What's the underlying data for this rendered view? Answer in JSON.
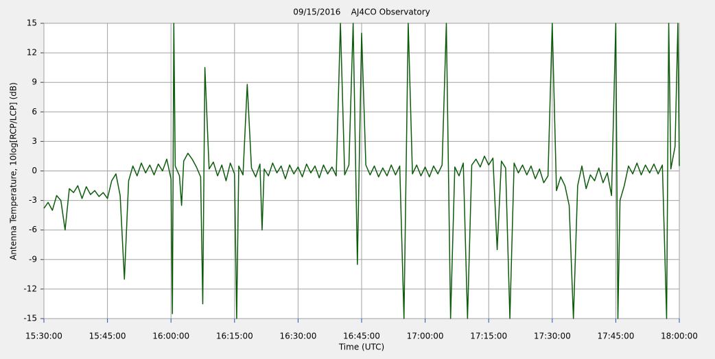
{
  "chart_data": {
    "type": "line",
    "title": "09/15/2016    AJ4CO Observatory",
    "x_label": "Time (UTC)",
    "y_label": "Antenna Temperature, 10log[RCP/LCP] (dB)",
    "color": "#0b5b0b",
    "grid": true,
    "xlim": [
      "15:30:00",
      "18:00:00"
    ],
    "xticks": [
      "15:30:00",
      "15:45:00",
      "16:00:00",
      "16:15:00",
      "16:30:00",
      "16:45:00",
      "17:00:00",
      "17:15:00",
      "17:30:00",
      "17:45:00",
      "18:00:00"
    ],
    "ylim": [
      -15,
      15
    ],
    "yticks": [
      15,
      12,
      9,
      6,
      3,
      0,
      -3,
      -6,
      -9,
      -12,
      -15
    ],
    "x": [
      "15:30:00",
      "15:31:00",
      "15:32:00",
      "15:33:00",
      "15:34:00",
      "15:35:00",
      "15:36:00",
      "15:37:00",
      "15:38:00",
      "15:39:00",
      "15:40:00",
      "15:41:00",
      "15:42:00",
      "15:43:00",
      "15:44:00",
      "15:45:00",
      "15:46:00",
      "15:47:00",
      "15:48:00",
      "15:49:00",
      "15:50:00",
      "15:51:00",
      "15:52:00",
      "15:53:00",
      "15:54:00",
      "15:55:00",
      "15:56:00",
      "15:57:00",
      "15:58:00",
      "15:59:00",
      "16:00:00",
      "16:00:20",
      "16:00:40",
      "16:01:00",
      "16:02:00",
      "16:02:30",
      "16:03:00",
      "16:04:00",
      "16:05:00",
      "16:06:00",
      "16:07:00",
      "16:07:30",
      "16:08:00",
      "16:09:00",
      "16:10:00",
      "16:11:00",
      "16:12:00",
      "16:13:00",
      "16:14:00",
      "16:15:00",
      "16:15:30",
      "16:16:00",
      "16:17:00",
      "16:18:00",
      "16:19:00",
      "16:20:00",
      "16:21:00",
      "16:21:30",
      "16:22:00",
      "16:23:00",
      "16:24:00",
      "16:25:00",
      "16:26:00",
      "16:27:00",
      "16:28:00",
      "16:29:00",
      "16:30:00",
      "16:31:00",
      "16:32:00",
      "16:33:00",
      "16:34:00",
      "16:35:00",
      "16:36:00",
      "16:37:00",
      "16:38:00",
      "16:39:00",
      "16:40:00",
      "16:41:00",
      "16:42:00",
      "16:43:00",
      "16:44:00",
      "16:45:00",
      "16:46:00",
      "16:47:00",
      "16:48:00",
      "16:49:00",
      "16:50:00",
      "16:51:00",
      "16:52:00",
      "16:53:00",
      "16:54:00",
      "16:55:00",
      "16:56:00",
      "16:57:00",
      "16:58:00",
      "16:59:00",
      "17:00:00",
      "17:01:00",
      "17:02:00",
      "17:03:00",
      "17:04:00",
      "17:05:00",
      "17:06:00",
      "17:07:00",
      "17:08:00",
      "17:09:00",
      "17:10:00",
      "17:11:00",
      "17:12:00",
      "17:13:00",
      "17:14:00",
      "17:15:00",
      "17:16:00",
      "17:17:00",
      "17:18:00",
      "17:19:00",
      "17:20:00",
      "17:21:00",
      "17:22:00",
      "17:23:00",
      "17:24:00",
      "17:25:00",
      "17:26:00",
      "17:27:00",
      "17:28:00",
      "17:29:00",
      "17:30:00",
      "17:31:00",
      "17:32:00",
      "17:33:00",
      "17:34:00",
      "17:35:00",
      "17:36:00",
      "17:37:00",
      "17:38:00",
      "17:39:00",
      "17:40:00",
      "17:41:00",
      "17:42:00",
      "17:43:00",
      "17:44:00",
      "17:45:00",
      "17:45:30",
      "17:46:00",
      "17:47:00",
      "17:48:00",
      "17:49:00",
      "17:50:00",
      "17:51:00",
      "17:52:00",
      "17:53:00",
      "17:54:00",
      "17:55:00",
      "17:56:00",
      "17:57:00",
      "17:57:30",
      "17:58:00",
      "17:59:00",
      "17:59:40",
      "18:00:00"
    ],
    "values": [
      -3.8,
      -3.2,
      -4.0,
      -2.5,
      -3.0,
      -6.0,
      -1.8,
      -2.2,
      -1.5,
      -2.8,
      -1.6,
      -2.4,
      -2.0,
      -2.6,
      -2.2,
      -2.8,
      -1.0,
      -0.3,
      -2.5,
      -11.0,
      -1.0,
      0.5,
      -0.5,
      0.8,
      -0.2,
      0.6,
      -0.4,
      0.7,
      0.0,
      1.2,
      -0.8,
      -14.5,
      15,
      0.5,
      -0.5,
      -3.5,
      1.0,
      1.8,
      1.2,
      0.4,
      -0.6,
      -13.5,
      10.5,
      0.2,
      0.9,
      -0.5,
      0.6,
      -1.0,
      0.8,
      -0.3,
      -15,
      0.5,
      -0.4,
      8.8,
      0.3,
      -0.6,
      0.7,
      -6,
      0.2,
      -0.5,
      0.8,
      -0.2,
      0.5,
      -0.8,
      0.6,
      -0.3,
      0.4,
      -0.6,
      0.7,
      -0.2,
      0.5,
      -0.7,
      0.6,
      -0.3,
      0.4,
      -0.5,
      15,
      -0.4,
      0.6,
      15,
      -9.5,
      14,
      0.6,
      -0.4,
      0.5,
      -0.6,
      0.3,
      -0.5,
      0.6,
      -0.4,
      0.5,
      -15,
      15,
      -0.3,
      0.6,
      -0.5,
      0.4,
      -0.6,
      0.5,
      -0.3,
      0.6,
      15,
      -15,
      0.4,
      -0.5,
      0.8,
      -15,
      0.6,
      1.2,
      0.4,
      1.5,
      0.6,
      1.3,
      -8.0,
      1.0,
      0.3,
      -15,
      0.8,
      -0.2,
      0.6,
      -0.4,
      0.5,
      -0.8,
      0.2,
      -1.2,
      -0.5,
      15,
      -2.0,
      -0.6,
      -1.5,
      -3.5,
      -15,
      -1.5,
      0.5,
      -1.8,
      -0.4,
      -1.0,
      0.3,
      -1.2,
      -0.2,
      -2.5,
      15,
      -15,
      -3.0,
      -1.5,
      0.5,
      -0.3,
      0.8,
      -0.4,
      0.6,
      -0.2,
      0.7,
      -0.3,
      0.6,
      -15,
      15,
      0.2,
      2.5,
      15,
      0.5
    ]
  }
}
